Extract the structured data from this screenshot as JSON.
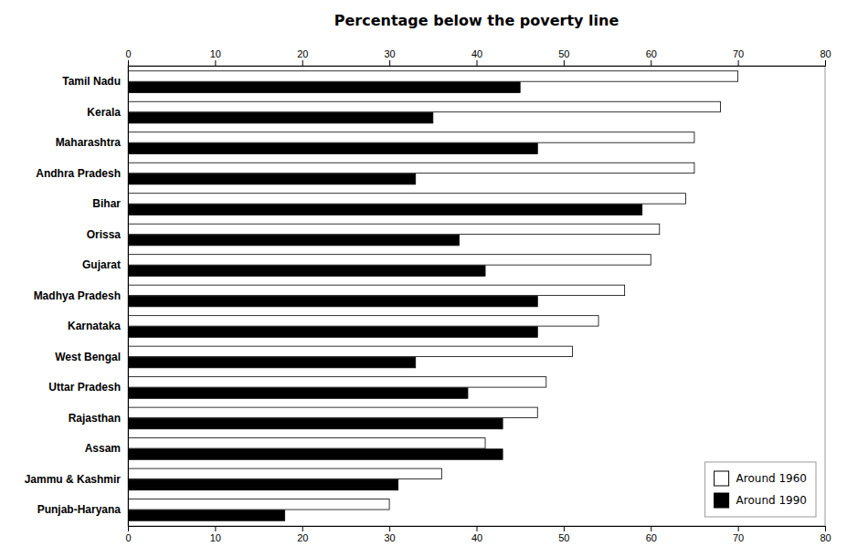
{
  "chart_data": {
    "type": "bar",
    "orientation": "horizontal",
    "title": "Percentage below the poverty line",
    "categories": [
      "Tamil Nadu",
      "Kerala",
      "Maharashtra",
      "Andhra Pradesh",
      "Bihar",
      "Orissa",
      "Gujarat",
      "Madhya Pradesh",
      "Karnataka",
      "West Bengal",
      "Uttar Pradesh",
      "Rajasthan",
      "Assam",
      "Jammu & Kashmir",
      "Punjab-Haryana"
    ],
    "series": [
      {
        "name": "Around 1960",
        "color": "#ffffff",
        "values": [
          70,
          68,
          65,
          65,
          64,
          61,
          60,
          57,
          54,
          51,
          48,
          47,
          41,
          36,
          30
        ]
      },
      {
        "name": "Around 1990",
        "color": "#000000",
        "values": [
          45,
          35,
          47,
          33,
          59,
          38,
          41,
          47,
          47,
          33,
          39,
          43,
          43,
          31,
          18
        ]
      }
    ],
    "xlim": [
      0,
      80
    ],
    "xticks": [
      0,
      10,
      20,
      30,
      40,
      50,
      60,
      70,
      80
    ],
    "grid": false,
    "legend": "lower right"
  }
}
